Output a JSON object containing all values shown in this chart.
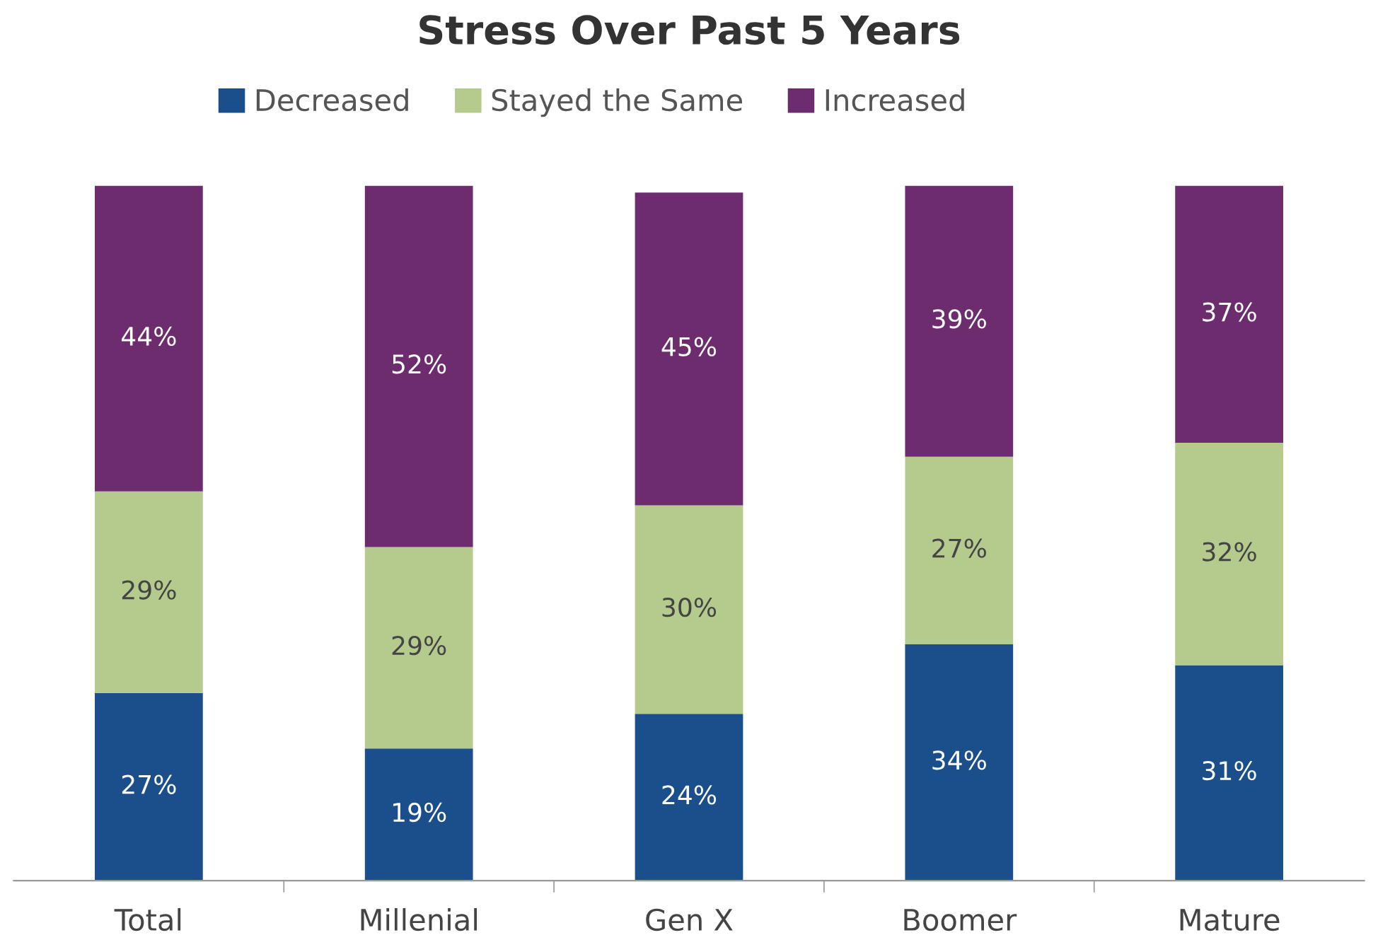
{
  "chart_data": {
    "type": "bar",
    "title": "Stress Over Past 5 Years",
    "stacked": true,
    "legend": "top",
    "grid": false,
    "categories": [
      "Total",
      "Millenial",
      "Gen X",
      "Boomer",
      "Mature"
    ],
    "series": [
      {
        "name": "Decreased",
        "color": "#1b4f8c",
        "values": [
          27,
          19,
          24,
          34,
          31
        ],
        "value_labels": [
          "27%",
          "19%",
          "24%",
          "34%",
          "31%"
        ]
      },
      {
        "name": "Stayed the Same",
        "color": "#b5cb8d",
        "values": [
          29,
          29,
          30,
          27,
          32
        ],
        "value_labels": [
          "29%",
          "29%",
          "30%",
          "27%",
          "32%"
        ]
      },
      {
        "name": "Increased",
        "color": "#6c2c6e",
        "values": [
          44,
          52,
          45,
          39,
          37
        ],
        "value_labels": [
          "44%",
          "52%",
          "45%",
          "39%",
          "37%"
        ]
      }
    ]
  }
}
